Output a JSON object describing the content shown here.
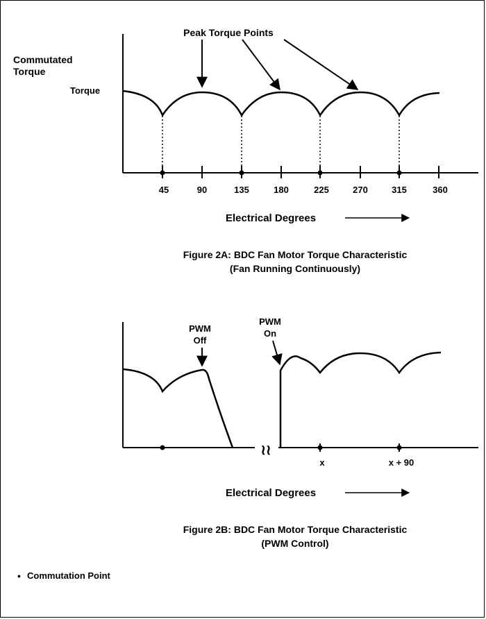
{
  "figure_a": {
    "peak_label": "Peak Torque Points",
    "y_title_line1": "Commutated",
    "y_title_line2": "Torque",
    "y_tick": "Torque",
    "x_ticks": [
      "45",
      "90",
      "135",
      "180",
      "225",
      "270",
      "315",
      "360"
    ],
    "x_label": "Electrical Degrees",
    "caption_line1": "Figure 2A:  BDC Fan Motor Torque Characteristic",
    "caption_line2": "(Fan Running Continuously)"
  },
  "figure_b": {
    "pwm_off_line1": "PWM",
    "pwm_off_line2": "Off",
    "pwm_on_line1": "PWM",
    "pwm_on_line2": "On",
    "tick_x": "x",
    "tick_x90": "x + 90",
    "break_mark": "≀≀",
    "x_label": "Electrical Degrees",
    "caption_line1": "Figure 2B:  BDC Fan Motor Torque Characteristic",
    "caption_line2": "(PWM Control)"
  },
  "legend": {
    "bullet": "•",
    "label": "Commutation Point"
  }
}
